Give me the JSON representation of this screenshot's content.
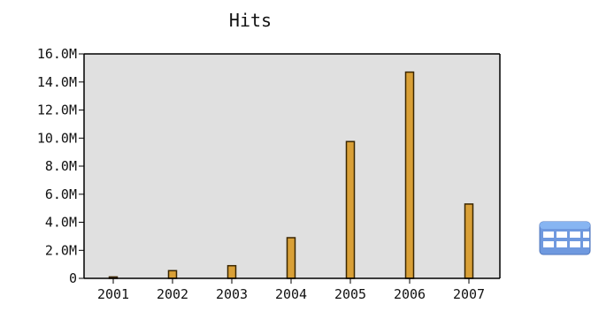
{
  "chart_data": {
    "type": "bar",
    "title": "Hits",
    "xlabel": "",
    "ylabel": "",
    "categories": [
      "2001",
      "2002",
      "2003",
      "2004",
      "2005",
      "2006",
      "2007"
    ],
    "values": [
      100000,
      550000,
      900000,
      2900000,
      9750000,
      14700000,
      5300000
    ],
    "ylim": [
      0,
      16000000
    ],
    "y_ticks": [
      0,
      2000000,
      4000000,
      6000000,
      8000000,
      10000000,
      12000000,
      14000000,
      16000000
    ],
    "y_tick_labels": [
      "0",
      "2.0M",
      "4.0M",
      "6.0M",
      "8.0M",
      "10.0M",
      "12.0M",
      "14.0M",
      "16.0M"
    ],
    "grid": false,
    "legend": "none",
    "colors": {
      "plot_background": "#e0e0e0",
      "bar_fill": "#d9a037",
      "bar_stroke": "#3a2600",
      "axis": "#000000"
    }
  },
  "side_icon": {
    "icon": "table-icon"
  }
}
